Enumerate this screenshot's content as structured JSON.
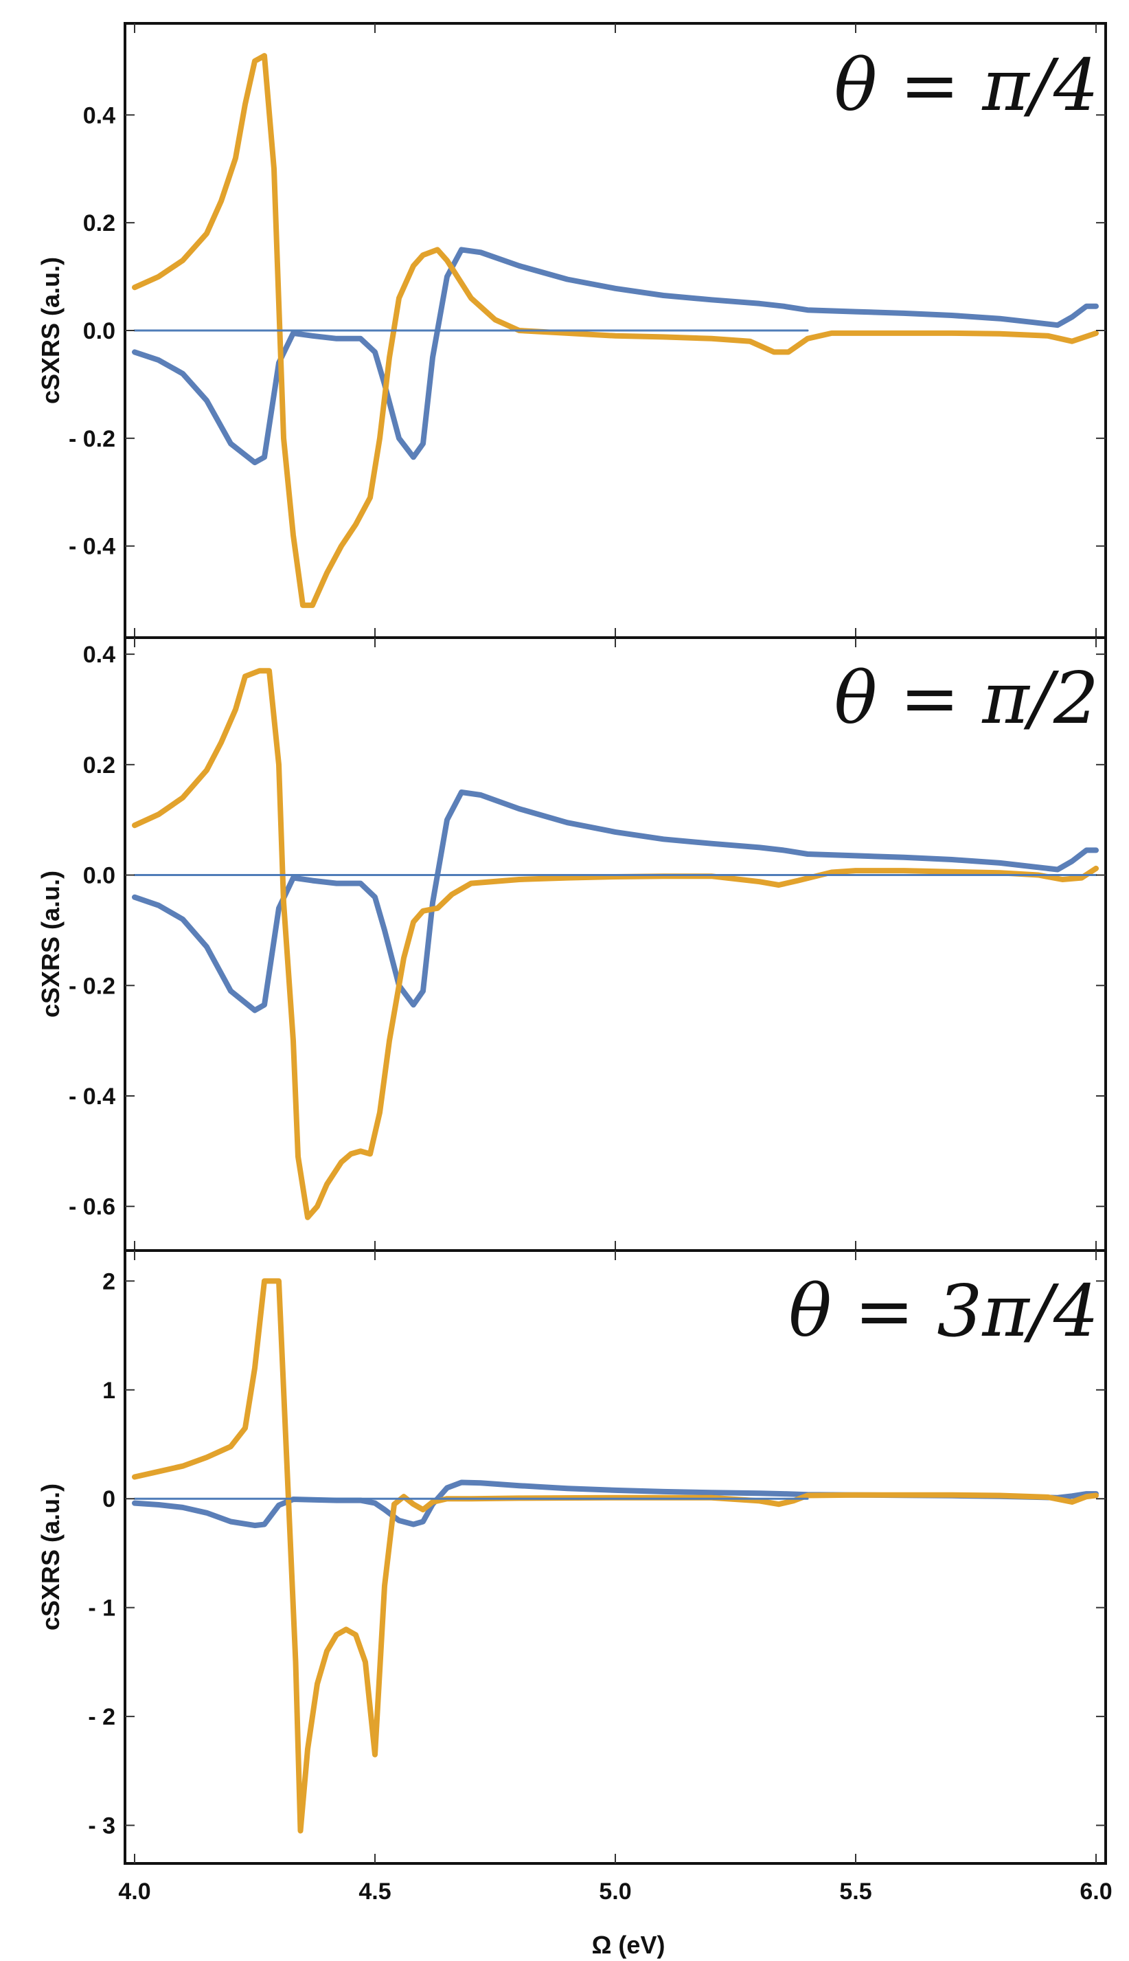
{
  "chart_data": [
    {
      "type": "line",
      "annotation": "θ = π/4",
      "ylabel": "cSXRS (a.u.)",
      "xlabel": "",
      "xlim": [
        3.98,
        6.02
      ],
      "ylim": [
        -0.57,
        0.57
      ],
      "yticks": [
        -0.4,
        -0.2,
        0.0,
        0.2,
        0.4
      ],
      "ytick_labels": [
        "- 0.4",
        "- 0.2",
        "0.0",
        "0.2",
        "0.4"
      ],
      "xticks": [
        4.0,
        4.5,
        5.0,
        5.5,
        6.0
      ],
      "xtick_labels": [],
      "grid": false,
      "legend": "none",
      "series": [
        {
          "color": "#5b7fb8",
          "x": [
            4.0,
            4.05,
            4.1,
            4.15,
            4.2,
            4.25,
            4.27,
            4.3,
            4.33,
            4.37,
            4.42,
            4.47,
            4.5,
            4.52,
            4.55,
            4.58,
            4.6,
            4.62,
            4.65,
            4.68,
            4.72,
            4.8,
            4.9,
            5.0,
            5.1,
            5.2,
            5.3,
            5.35,
            5.4,
            5.5,
            5.6,
            5.7,
            5.8,
            5.87,
            5.92,
            5.95,
            5.98,
            6.0
          ],
          "y": [
            -0.04,
            -0.055,
            -0.08,
            -0.13,
            -0.21,
            -0.245,
            -0.235,
            -0.06,
            -0.005,
            -0.01,
            -0.015,
            -0.015,
            -0.04,
            -0.1,
            -0.2,
            -0.235,
            -0.21,
            -0.05,
            0.1,
            0.15,
            0.145,
            0.12,
            0.095,
            0.078,
            0.065,
            0.057,
            0.05,
            0.045,
            0.038,
            0.035,
            0.032,
            0.028,
            0.022,
            0.015,
            0.01,
            0.025,
            0.045,
            0.045
          ]
        },
        {
          "color": "#e2a22c",
          "x": [
            4.0,
            4.05,
            4.1,
            4.15,
            4.18,
            4.21,
            4.23,
            4.25,
            4.27,
            4.29,
            4.3,
            4.31,
            4.33,
            4.35,
            4.37,
            4.4,
            4.43,
            4.46,
            4.49,
            4.51,
            4.53,
            4.55,
            4.58,
            4.6,
            4.63,
            4.65,
            4.7,
            4.75,
            4.8,
            4.9,
            5.0,
            5.1,
            5.2,
            5.28,
            5.33,
            5.36,
            5.4,
            5.45,
            5.5,
            5.6,
            5.7,
            5.8,
            5.9,
            5.95,
            6.0
          ],
          "y": [
            0.08,
            0.1,
            0.13,
            0.18,
            0.24,
            0.32,
            0.42,
            0.5,
            0.51,
            0.3,
            0.05,
            -0.2,
            -0.38,
            -0.51,
            -0.51,
            -0.45,
            -0.4,
            -0.36,
            -0.31,
            -0.2,
            -0.05,
            0.06,
            0.12,
            0.14,
            0.15,
            0.13,
            0.06,
            0.02,
            0.0,
            -0.005,
            -0.01,
            -0.012,
            -0.015,
            -0.02,
            -0.04,
            -0.04,
            -0.015,
            -0.005,
            -0.005,
            -0.005,
            -0.005,
            -0.006,
            -0.01,
            -0.02,
            -0.005
          ]
        },
        {
          "color": "#4f7cb8",
          "x": [
            4.0,
            5.4
          ],
          "y": [
            0.0,
            0.0
          ]
        }
      ]
    },
    {
      "type": "line",
      "annotation": "θ = π/2",
      "ylabel": "cSXRS (a.u.)",
      "xlabel": "",
      "xlim": [
        3.98,
        6.02
      ],
      "ylim": [
        -0.68,
        0.43
      ],
      "yticks": [
        -0.6,
        -0.4,
        -0.2,
        0.0,
        0.2,
        0.4
      ],
      "ytick_labels": [
        "- 0.6",
        "- 0.4",
        "- 0.2",
        "0.0",
        "0.2",
        "0.4"
      ],
      "xticks": [
        4.0,
        4.5,
        5.0,
        5.5,
        6.0
      ],
      "xtick_labels": [],
      "grid": false,
      "legend": "none",
      "series": [
        {
          "color": "#5b7fb8",
          "x": [
            4.0,
            4.05,
            4.1,
            4.15,
            4.2,
            4.25,
            4.27,
            4.3,
            4.33,
            4.37,
            4.42,
            4.47,
            4.5,
            4.52,
            4.55,
            4.58,
            4.6,
            4.62,
            4.65,
            4.68,
            4.72,
            4.8,
            4.9,
            5.0,
            5.1,
            5.2,
            5.3,
            5.35,
            5.4,
            5.5,
            5.6,
            5.7,
            5.8,
            5.87,
            5.92,
            5.95,
            5.98,
            6.0
          ],
          "y": [
            -0.04,
            -0.055,
            -0.08,
            -0.13,
            -0.21,
            -0.245,
            -0.235,
            -0.06,
            -0.005,
            -0.01,
            -0.015,
            -0.015,
            -0.04,
            -0.1,
            -0.2,
            -0.235,
            -0.21,
            -0.05,
            0.1,
            0.15,
            0.145,
            0.12,
            0.095,
            0.078,
            0.065,
            0.057,
            0.05,
            0.045,
            0.038,
            0.035,
            0.032,
            0.028,
            0.022,
            0.015,
            0.01,
            0.025,
            0.045,
            0.045
          ]
        },
        {
          "color": "#e2a22c",
          "x": [
            4.0,
            4.05,
            4.1,
            4.15,
            4.18,
            4.21,
            4.23,
            4.26,
            4.28,
            4.3,
            4.31,
            4.33,
            4.34,
            4.36,
            4.38,
            4.4,
            4.43,
            4.45,
            4.47,
            4.49,
            4.51,
            4.53,
            4.56,
            4.58,
            4.6,
            4.63,
            4.66,
            4.7,
            4.8,
            4.9,
            5.0,
            5.1,
            5.2,
            5.3,
            5.34,
            5.38,
            5.45,
            5.5,
            5.6,
            5.7,
            5.8,
            5.88,
            5.93,
            5.97,
            6.0
          ],
          "y": [
            0.09,
            0.11,
            0.14,
            0.19,
            0.24,
            0.3,
            0.36,
            0.37,
            0.37,
            0.2,
            -0.05,
            -0.3,
            -0.51,
            -0.62,
            -0.6,
            -0.56,
            -0.52,
            -0.505,
            -0.5,
            -0.505,
            -0.43,
            -0.3,
            -0.15,
            -0.085,
            -0.065,
            -0.06,
            -0.035,
            -0.015,
            -0.008,
            -0.005,
            -0.003,
            -0.002,
            -0.002,
            -0.012,
            -0.018,
            -0.01,
            0.005,
            0.008,
            0.008,
            0.006,
            0.004,
            0.0,
            -0.008,
            -0.005,
            0.012
          ]
        },
        {
          "color": "#4f7cb8",
          "x": [
            4.0,
            6.0
          ],
          "y": [
            0.0,
            0.0
          ]
        }
      ]
    },
    {
      "type": "line",
      "annotation": "θ = 3π/4",
      "ylabel": "cSXRS (a.u.)",
      "xlabel": "Ω (eV)",
      "xlim": [
        3.98,
        6.02
      ],
      "ylim": [
        -3.35,
        2.28
      ],
      "yticks": [
        -3,
        -2,
        -1,
        0,
        1,
        2
      ],
      "ytick_labels": [
        "- 3",
        "- 2",
        "- 1",
        "0",
        "1",
        "2"
      ],
      "xticks": [
        4.0,
        4.5,
        5.0,
        5.5,
        6.0
      ],
      "xtick_labels": [
        "4.0",
        "4.5",
        "5.0",
        "5.5",
        "6.0"
      ],
      "grid": false,
      "legend": "none",
      "series": [
        {
          "color": "#5b7fb8",
          "x": [
            4.0,
            4.05,
            4.1,
            4.15,
            4.2,
            4.25,
            4.27,
            4.3,
            4.33,
            4.37,
            4.42,
            4.47,
            4.5,
            4.52,
            4.55,
            4.58,
            4.6,
            4.62,
            4.65,
            4.68,
            4.72,
            4.8,
            4.9,
            5.0,
            5.1,
            5.2,
            5.3,
            5.35,
            5.4,
            5.5,
            5.6,
            5.7,
            5.8,
            5.87,
            5.92,
            5.95,
            5.98,
            6.0
          ],
          "y": [
            -0.04,
            -0.055,
            -0.08,
            -0.13,
            -0.21,
            -0.245,
            -0.235,
            -0.06,
            -0.005,
            -0.01,
            -0.015,
            -0.015,
            -0.04,
            -0.1,
            -0.2,
            -0.235,
            -0.21,
            -0.05,
            0.1,
            0.15,
            0.145,
            0.12,
            0.095,
            0.078,
            0.065,
            0.057,
            0.05,
            0.045,
            0.038,
            0.035,
            0.032,
            0.028,
            0.022,
            0.015,
            0.01,
            0.025,
            0.045,
            0.045
          ]
        },
        {
          "color": "#e2a22c",
          "x": [
            4.0,
            4.05,
            4.1,
            4.15,
            4.2,
            4.23,
            4.25,
            4.27,
            4.28,
            4.3,
            4.32,
            4.335,
            4.345,
            4.36,
            4.38,
            4.4,
            4.42,
            4.44,
            4.46,
            4.48,
            4.5,
            4.52,
            4.54,
            4.56,
            4.58,
            4.6,
            4.62,
            4.65,
            4.7,
            4.8,
            5.0,
            5.2,
            5.3,
            5.34,
            5.37,
            5.4,
            5.5,
            5.6,
            5.7,
            5.8,
            5.9,
            5.95,
            5.98,
            6.0
          ],
          "y": [
            0.2,
            0.25,
            0.3,
            0.38,
            0.48,
            0.65,
            1.2,
            2.0,
            2.0,
            2.0,
            0.0,
            -1.5,
            -3.05,
            -2.3,
            -1.7,
            -1.4,
            -1.25,
            -1.2,
            -1.25,
            -1.5,
            -2.35,
            -0.8,
            -0.05,
            0.02,
            -0.05,
            -0.1,
            -0.03,
            0.0,
            0.0,
            0.005,
            0.01,
            0.01,
            -0.02,
            -0.05,
            -0.02,
            0.03,
            0.035,
            0.035,
            0.035,
            0.03,
            0.015,
            -0.03,
            0.02,
            0.03
          ]
        },
        {
          "color": "#4f7cb8",
          "x": [
            4.0,
            5.4
          ],
          "y": [
            0.0,
            0.0
          ]
        }
      ]
    }
  ]
}
